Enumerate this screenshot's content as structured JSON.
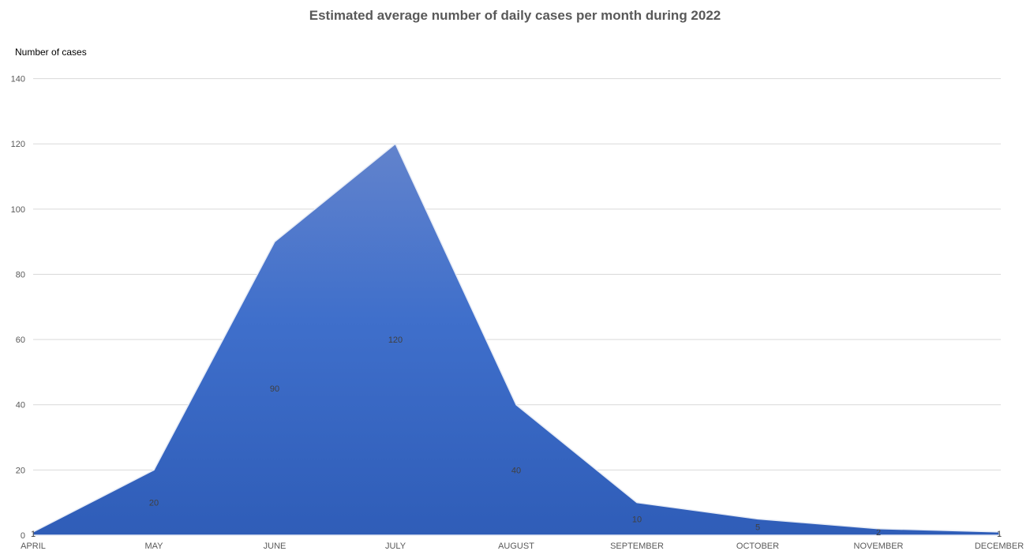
{
  "chart_data": {
    "type": "area",
    "title": "Estimated average number of  daily cases per month during 2022",
    "ylabel": "Number of cases",
    "xlabel": "",
    "categories": [
      "APRIL",
      "MAY",
      "JUNE",
      "JULY",
      "AUGUST",
      "SEPTEMBER",
      "OCTOBER",
      "NOVEMBER",
      "DECEMBER"
    ],
    "values": [
      1,
      20,
      90,
      120,
      40,
      10,
      5,
      2,
      1
    ],
    "ylim": [
      0,
      140
    ],
    "yticks": [
      0,
      20,
      40,
      60,
      80,
      100,
      120,
      140
    ],
    "grid": true,
    "legend": "none",
    "colors": {
      "fill_top": "#6283CC",
      "fill_bottom": "#2F5DB8",
      "gridline": "#D9D9D9",
      "axis_text": "#595959"
    }
  }
}
